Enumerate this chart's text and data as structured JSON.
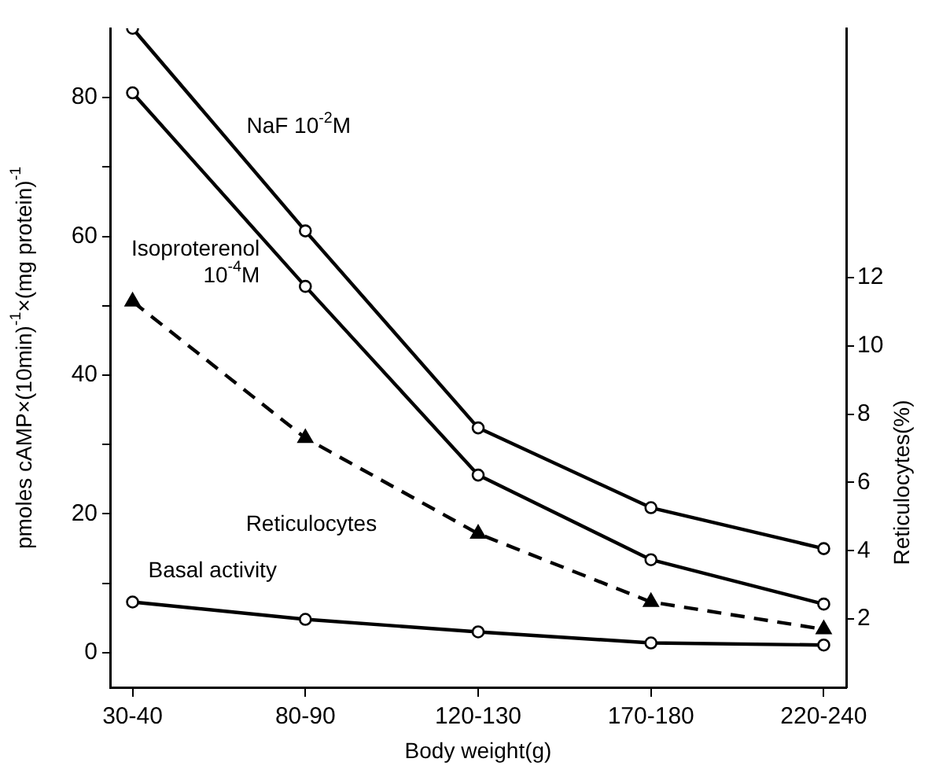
{
  "chart_data": {
    "type": "line",
    "xlabel": "Body weight(g)",
    "ylabel": "pmoles cAMP×(10min)$^{-1}$×(mg protein)$^{-1}$",
    "y2label": "Reticulocytes(%)",
    "categories": [
      "30-40",
      "80-90",
      "120-130",
      "170-180",
      "220-240"
    ],
    "series": [
      {
        "name": "NaF 10$^{-2}$M",
        "color": "#000000",
        "marker": "circle",
        "values": [
          90,
          60.8,
          32.4,
          20.9,
          15
        ]
      },
      {
        "name": "Isoproterenol 10$^{-4}$M",
        "color": "#000000",
        "marker": "circle",
        "values": [
          80.7,
          52.8,
          25.6,
          13.4,
          7
        ]
      },
      {
        "name": "Reticulocytes",
        "color": "#000000",
        "marker": "triangle",
        "line_style": "dashed",
        "axis": "y2",
        "values": [
          11.3,
          7.3,
          4.5,
          2.5,
          1.7
        ]
      },
      {
        "name": "Basal activity",
        "color": "#000000",
        "marker": "circle",
        "values": [
          7.3,
          4.8,
          3,
          1.4,
          1.1
        ]
      }
    ],
    "ylim": [
      -5,
      90
    ],
    "yticks": [
      0,
      {
        "value": 10,
        "label": null
      },
      20,
      {
        "value": 30,
        "label": null
      },
      40,
      {
        "value": 50,
        "label": null
      },
      60,
      {
        "value": 70,
        "label": null
      },
      80
    ],
    "y2lim": [
      0,
      19.3
    ],
    "y2ticks": [
      2,
      4,
      6,
      8,
      10,
      12
    ],
    "grid": false,
    "legend": false
  }
}
